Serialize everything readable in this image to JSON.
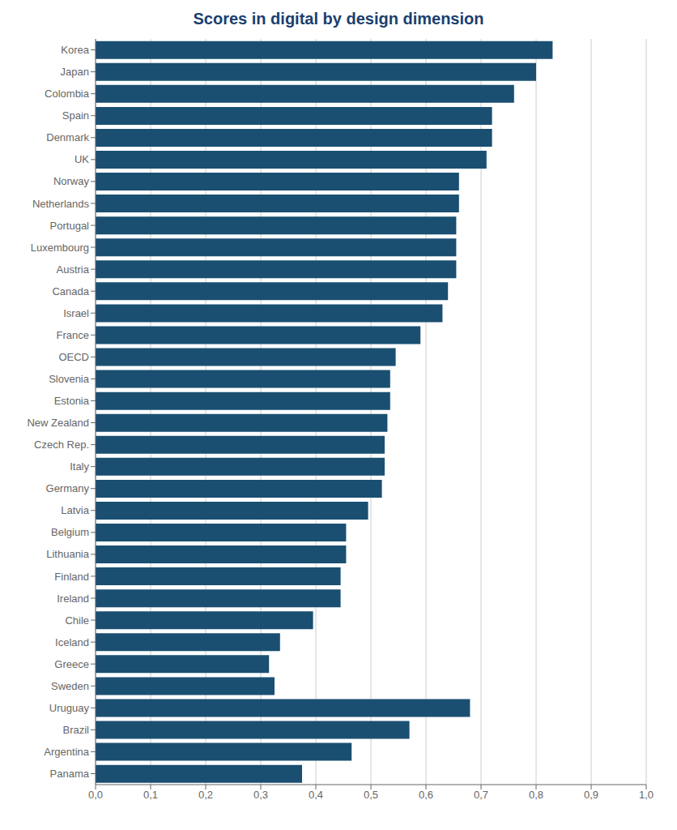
{
  "chart_data": {
    "type": "bar",
    "orientation": "horizontal",
    "title": "Scores in digital by design dimension",
    "categories": [
      "Korea",
      "Japan",
      "Colombia",
      "Spain",
      "Denmark",
      "UK",
      "Norway",
      "Netherlands",
      "Portugal",
      "Luxembourg",
      "Austria",
      "Canada",
      "Israel",
      "France",
      "OECD",
      "Slovenia",
      "Estonia",
      "New Zealand",
      "Czech Rep.",
      "Italy",
      "Germany",
      "Latvia",
      "Belgium",
      "Lithuania",
      "Finland",
      "Ireland",
      "Chile",
      "Iceland",
      "Greece",
      "Sweden",
      "Uruguay",
      "Brazil",
      "Argentina",
      "Panama"
    ],
    "values": [
      0.83,
      0.8,
      0.76,
      0.72,
      0.72,
      0.71,
      0.66,
      0.66,
      0.655,
      0.655,
      0.655,
      0.64,
      0.63,
      0.59,
      0.545,
      0.535,
      0.535,
      0.53,
      0.525,
      0.525,
      0.52,
      0.495,
      0.455,
      0.455,
      0.445,
      0.445,
      0.395,
      0.335,
      0.315,
      0.325,
      0.68,
      0.57,
      0.465,
      0.375
    ],
    "color": "#1a4f72",
    "xlim": [
      0.0,
      1.0
    ],
    "xticks": [
      {
        "value": 0.0,
        "label": "0,0"
      },
      {
        "value": 0.1,
        "label": "0,1"
      },
      {
        "value": 0.2,
        "label": "0,2"
      },
      {
        "value": 0.3,
        "label": "0,3"
      },
      {
        "value": 0.4,
        "label": "0,4"
      },
      {
        "value": 0.5,
        "label": "0,5"
      },
      {
        "value": 0.6,
        "label": "0,6"
      },
      {
        "value": 0.7,
        "label": "0,7"
      },
      {
        "value": 0.8,
        "label": "0,8"
      },
      {
        "value": 0.9,
        "label": "0,9"
      },
      {
        "value": 1.0,
        "label": "1,0"
      }
    ],
    "grid": true
  }
}
